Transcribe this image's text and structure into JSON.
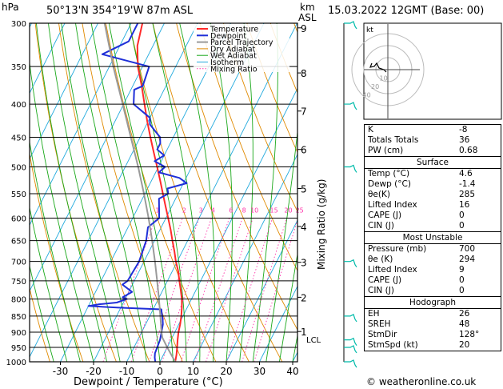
{
  "header": {
    "hpa_label": "hPa",
    "location": "50°13'N  354°19'W  87m  ASL",
    "km_label": "km",
    "asl_label": "ASL",
    "datetime": "15.03.2022  12GMT  (Base: 00)"
  },
  "footer": {
    "credit": "© weatheronline.co.uk"
  },
  "legend": [
    "Temperature",
    "Dewpoint",
    "Parcel Trajectory",
    "Dry Adiabat",
    "Wet Adiabat",
    "Isotherm",
    "Mixing Ratio"
  ],
  "colors": {
    "temperature": "#ff2a2a",
    "dewpoint": "#1f2fd8",
    "parcel": "#9a9a9a",
    "dry_adiabat": "#e08a00",
    "wet_adiabat": "#1aa81a",
    "isotherm": "#22aadd",
    "mixing_ratio": "#ff33aa",
    "wind_barb": "#00bbaa"
  },
  "chart_data": {
    "type": "line",
    "title": "",
    "xlabel": "Dewpoint / Temperature (°C)",
    "ylabel": "Mixing Ratio (g/kg)",
    "left_axis_title": "hPa",
    "right_axis_title": "km ASL",
    "x_ticks": [
      -30,
      -20,
      -10,
      0,
      10,
      20,
      30,
      40
    ],
    "pressure_ticks": [
      300,
      350,
      400,
      450,
      500,
      550,
      600,
      650,
      700,
      750,
      800,
      850,
      900,
      950,
      1000
    ],
    "km_ticks": [
      {
        "km": "9",
        "p": 305
      },
      {
        "km": "8",
        "p": 358
      },
      {
        "km": "7",
        "p": 410
      },
      {
        "km": "6",
        "p": 470
      },
      {
        "km": "5",
        "p": 540
      },
      {
        "km": "4",
        "p": 618
      },
      {
        "km": "3",
        "p": 702
      },
      {
        "km": "2",
        "p": 795
      },
      {
        "km": "1",
        "p": 898
      }
    ],
    "lcl_label": "LCL",
    "lcl_p": 918,
    "mixing_ratio_labels": [
      "1",
      "2",
      "3",
      "4",
      "6",
      "8",
      "10",
      "15",
      "20",
      "25"
    ],
    "mixing_ratio_values": [
      1,
      2,
      3,
      4,
      6,
      8,
      10,
      15,
      20,
      25
    ],
    "mixing_ratio_label_p": 590,
    "series": [
      {
        "name": "Temperature",
        "p": [
          1000,
          975,
          950,
          925,
          900,
          875,
          850,
          825,
          800,
          775,
          750,
          725,
          700,
          675,
          650,
          625,
          600,
          575,
          550,
          525,
          500,
          475,
          450,
          425,
          400,
          375,
          350,
          325,
          300
        ],
        "t": [
          4.6,
          3.9,
          3.0,
          2.0,
          1.1,
          0.4,
          -0.5,
          -1.6,
          -2.9,
          -4.6,
          -6.4,
          -8.2,
          -10.4,
          -12.4,
          -14.6,
          -16.8,
          -19.3,
          -21.9,
          -24.6,
          -27.4,
          -30.4,
          -33.6,
          -36.9,
          -40.3,
          -43.7,
          -47.3,
          -51.4,
          -54.7,
          -56.6
        ]
      },
      {
        "name": "Dewpoint",
        "p": [
          1000,
          985,
          970,
          950,
          925,
          900,
          875,
          860,
          850,
          840,
          830,
          825,
          820,
          815,
          810,
          800,
          795,
          780,
          760,
          750,
          700,
          650,
          620,
          600,
          560,
          550,
          540,
          530,
          520,
          510,
          500,
          490,
          480,
          470,
          460,
          450,
          430,
          420,
          400,
          380,
          375,
          350,
          335,
          320,
          300
        ],
        "t": [
          -1.4,
          -2.2,
          -2.8,
          -3.0,
          -3.3,
          -4.0,
          -4.8,
          -5.6,
          -6.2,
          -6.9,
          -7.5,
          -20.5,
          -30.0,
          -27.0,
          -22.0,
          -19.5,
          -21.0,
          -19.0,
          -23.0,
          -22.0,
          -21.5,
          -22.5,
          -24.0,
          -22.0,
          -25.0,
          -23.0,
          -24.0,
          -19.0,
          -22.0,
          -29.0,
          -28.0,
          -32.0,
          -30.0,
          -33.0,
          -33.0,
          -34.0,
          -39.0,
          -40.0,
          -47.0,
          -49.0,
          -47.0,
          -48.0,
          -64.0,
          -58.0,
          -58.0
        ]
      },
      {
        "name": "Parcel Trajectory",
        "p": [
          1000,
          950,
          918,
          900,
          850,
          800,
          750,
          700,
          650,
          600,
          550,
          500,
          450,
          400,
          350,
          300
        ],
        "t": [
          4.6,
          0.0,
          -2.9,
          -4.0,
          -6.8,
          -9.8,
          -13.1,
          -16.7,
          -20.7,
          -25.2,
          -30.3,
          -36.1,
          -42.8,
          -50.3,
          -58.8,
          -68.0
        ]
      }
    ],
    "wind_barbs": [
      {
        "p": 300,
        "type": "flag"
      },
      {
        "p": 400,
        "type": "barb"
      },
      {
        "p": 500,
        "type": "barb"
      },
      {
        "p": 700,
        "type": "barb"
      },
      {
        "p": 850,
        "type": "barb"
      },
      {
        "p": 925,
        "type": "barb"
      },
      {
        "p": 950,
        "type": "barb"
      },
      {
        "p": 1000,
        "type": "barb"
      }
    ],
    "hodograph": {
      "label": "kt",
      "ring_labels": [
        "10",
        "20",
        "40"
      ],
      "u": [
        -2,
        -5,
        -11,
        -14,
        -17,
        -22,
        -20
      ],
      "v": [
        -3,
        0,
        2,
        8,
        4,
        3,
        8
      ]
    }
  },
  "indices": {
    "block1": [
      {
        "label": "K",
        "value": "-8"
      },
      {
        "label": "Totals Totals",
        "value": "36"
      },
      {
        "label": "PW (cm)",
        "value": "0.68"
      }
    ],
    "surface": {
      "title": "Surface",
      "rows": [
        {
          "label": "Temp (°C)",
          "value": "4.6"
        },
        {
          "label": "Dewp (°C)",
          "value": "-1.4"
        },
        {
          "label": "θe(K)",
          "value": "285"
        },
        {
          "label": "Lifted Index",
          "value": "16"
        },
        {
          "label": "CAPE (J)",
          "value": "0"
        },
        {
          "label": "CIN (J)",
          "value": "0"
        }
      ]
    },
    "unstable": {
      "title": "Most Unstable",
      "rows": [
        {
          "label": "Pressure (mb)",
          "value": "700"
        },
        {
          "label": "θe (K)",
          "value": "294"
        },
        {
          "label": "Lifted Index",
          "value": "9"
        },
        {
          "label": "CAPE (J)",
          "value": "0"
        },
        {
          "label": "CIN (J)",
          "value": "0"
        }
      ]
    },
    "hodograph": {
      "title": "Hodograph",
      "rows": [
        {
          "label": "EH",
          "value": "26"
        },
        {
          "label": "SREH",
          "value": "48"
        },
        {
          "label": "StmDir",
          "value": "128°"
        },
        {
          "label": "StmSpd (kt)",
          "value": "20"
        }
      ]
    }
  }
}
